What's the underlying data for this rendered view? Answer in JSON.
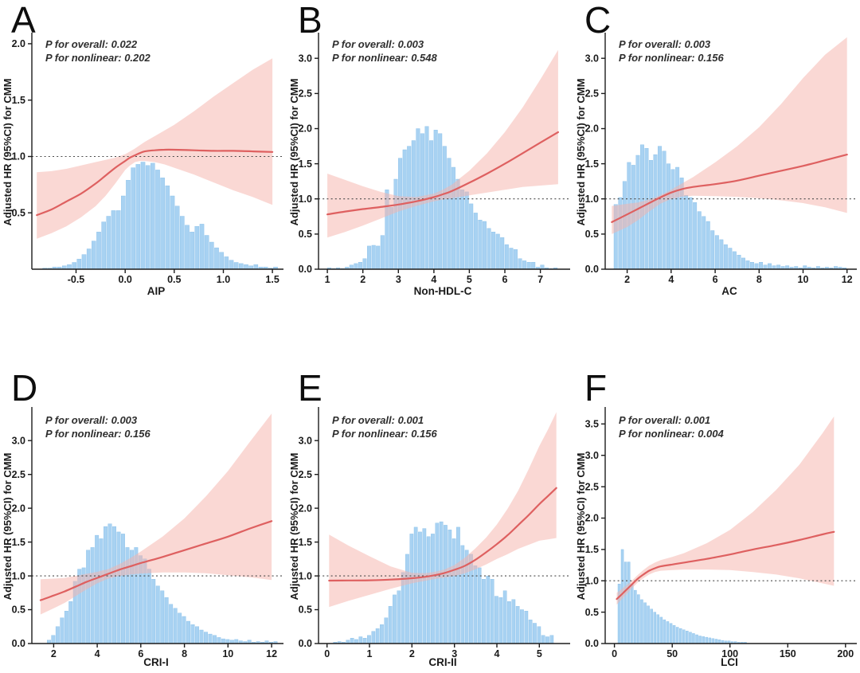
{
  "figure": {
    "ylabel": "Adjusted HR (95%CI) for CMM",
    "colors": {
      "curve": "#de6060",
      "band": "#f6b2aa",
      "band_opacity": 0.5,
      "hist_fill": "#a8d2f2",
      "hist_edge": "#86bde8",
      "reference_dash": "#4a4a4a",
      "axis": "#1c1c1c",
      "tick_text": "#1a1a1a"
    }
  },
  "chart_data": [
    {
      "letter": "A",
      "type": "line",
      "xlabel": "AIP",
      "annotations": {
        "p_overall": "P for overall: 0.022",
        "p_nonlinear": "P for nonlinear: 0.202"
      },
      "xlim": [
        -0.95,
        1.58
      ],
      "ylim": [
        0,
        2.07
      ],
      "ref_line": 1.0,
      "xticks": {
        "values": [
          -0.5,
          0,
          0.5,
          1,
          1.5
        ],
        "labels": [
          "-0.5",
          "0.0",
          "0.5",
          "1.0",
          "1.5"
        ]
      },
      "yticks": {
        "values": [
          0.5,
          1,
          1.5,
          2
        ],
        "labels": [
          "0.5",
          "1.0",
          "1.5",
          "2.0"
        ]
      },
      "curve": {
        "x": [
          -0.9,
          -0.75,
          -0.6,
          -0.45,
          -0.3,
          -0.2,
          -0.1,
          0,
          0.05,
          0.1,
          0.15,
          0.2,
          0.3,
          0.4,
          0.5,
          0.7,
          0.9,
          1.1,
          1.3,
          1.5
        ],
        "hr": [
          0.48,
          0.53,
          0.6,
          0.67,
          0.76,
          0.83,
          0.9,
          0.96,
          0.99,
          1.01,
          1.03,
          1.045,
          1.055,
          1.06,
          1.06,
          1.055,
          1.05,
          1.05,
          1.045,
          1.04
        ],
        "lower": [
          0.27,
          0.32,
          0.38,
          0.46,
          0.56,
          0.65,
          0.76,
          0.88,
          0.92,
          0.95,
          0.96,
          0.96,
          0.95,
          0.93,
          0.9,
          0.84,
          0.77,
          0.7,
          0.64,
          0.57
        ],
        "upper": [
          0.86,
          0.87,
          0.89,
          0.92,
          0.95,
          0.97,
          0.99,
          1.02,
          1.045,
          1.07,
          1.1,
          1.13,
          1.18,
          1.23,
          1.28,
          1.4,
          1.53,
          1.65,
          1.77,
          1.87
        ]
      },
      "hist": {
        "x0": -0.84,
        "bin_width": 0.05,
        "heights": [
          0.01,
          0.01,
          0.02,
          0.02,
          0.03,
          0.04,
          0.06,
          0.09,
          0.13,
          0.18,
          0.25,
          0.33,
          0.42,
          0.47,
          0.52,
          0.52,
          0.65,
          0.79,
          0.9,
          0.93,
          0.95,
          0.92,
          0.94,
          0.88,
          0.81,
          0.74,
          0.65,
          0.56,
          0.47,
          0.39,
          0.33,
          0.38,
          0.4,
          0.3,
          0.24,
          0.19,
          0.15,
          0.11,
          0.08,
          0.06,
          0.05,
          0.04,
          0.03,
          0.04,
          0.02,
          0.02,
          0.01,
          0.02
        ]
      }
    },
    {
      "letter": "B",
      "type": "line",
      "xlabel": "Non-HDL-C",
      "annotations": {
        "p_overall": "P for overall: 0.003",
        "p_nonlinear": "P for nonlinear: 0.548"
      },
      "xlim": [
        0.75,
        7.75
      ],
      "ylim": [
        0,
        3.32
      ],
      "ref_line": 1.0,
      "xticks": {
        "values": [
          1,
          2,
          3,
          4,
          5,
          6,
          7
        ],
        "labels": [
          "1",
          "2",
          "3",
          "4",
          "5",
          "6",
          "7"
        ]
      },
      "yticks": {
        "values": [
          0,
          0.5,
          1,
          1.5,
          2,
          2.5,
          3
        ],
        "labels": [
          "0.0",
          "0.5",
          "1.0",
          "1.5",
          "2.0",
          "2.5",
          "3.0"
        ]
      },
      "curve": {
        "x": [
          1,
          1.5,
          2,
          2.5,
          3,
          3.5,
          4,
          4.25,
          4.5,
          5,
          5.5,
          6,
          6.5,
          7,
          7.5
        ],
        "hr": [
          0.78,
          0.82,
          0.855,
          0.885,
          0.92,
          0.965,
          1.025,
          1.065,
          1.11,
          1.23,
          1.36,
          1.5,
          1.65,
          1.8,
          1.95
        ],
        "lower": [
          0.45,
          0.53,
          0.62,
          0.72,
          0.82,
          0.9,
          0.965,
          0.99,
          1.01,
          1.05,
          1.09,
          1.13,
          1.17,
          1.19,
          1.21
        ],
        "upper": [
          1.36,
          1.27,
          1.18,
          1.1,
          1.04,
          1.025,
          1.075,
          1.13,
          1.2,
          1.4,
          1.65,
          1.95,
          2.3,
          2.7,
          3.12
        ]
      },
      "hist": {
        "x0": 1.0,
        "bin_width": 0.125,
        "heights": [
          0.02,
          0.01,
          0.02,
          0.01,
          0.03,
          0.06,
          0.08,
          0.1,
          0.15,
          0.33,
          0.34,
          0.33,
          0.48,
          1.13,
          0.88,
          1.28,
          1.58,
          1.7,
          1.75,
          1.83,
          2.0,
          1.93,
          2.03,
          1.83,
          1.98,
          1.93,
          1.75,
          1.58,
          1.45,
          1.28,
          1.13,
          1.1,
          0.93,
          0.8,
          0.7,
          0.68,
          0.58,
          0.53,
          0.5,
          0.45,
          0.35,
          0.3,
          0.28,
          0.15,
          0.12,
          0.1,
          0.1,
          0.03,
          0.06,
          0.02,
          0.01,
          0.02
        ]
      }
    },
    {
      "letter": "C",
      "type": "line",
      "xlabel": "AC",
      "annotations": {
        "p_overall": "P for overall: 0.003",
        "p_nonlinear": "P for nonlinear: 0.156"
      },
      "xlim": [
        1.0,
        12.3
      ],
      "ylim": [
        0,
        3.32
      ],
      "ref_line": 1.0,
      "xticks": {
        "values": [
          2,
          4,
          6,
          8,
          10,
          12
        ],
        "labels": [
          "2",
          "4",
          "6",
          "8",
          "10",
          "12"
        ]
      },
      "yticks": {
        "values": [
          0,
          0.5,
          1,
          1.5,
          2,
          2.5,
          3
        ],
        "labels": [
          "0.0",
          "0.5",
          "1.0",
          "1.5",
          "2.0",
          "2.5",
          "3.0"
        ]
      },
      "curve": {
        "x": [
          1.3,
          2,
          2.5,
          3,
          3.5,
          4,
          4.5,
          5,
          6,
          7,
          8,
          9,
          10,
          11,
          12
        ],
        "hr": [
          0.67,
          0.78,
          0.86,
          0.94,
          1.02,
          1.09,
          1.14,
          1.17,
          1.21,
          1.26,
          1.33,
          1.4,
          1.47,
          1.55,
          1.63
        ],
        "lower": [
          0.5,
          0.6,
          0.7,
          0.82,
          0.93,
          1.0,
          1.035,
          1.045,
          1.04,
          1.03,
          1.01,
          0.98,
          0.94,
          0.88,
          0.8
        ],
        "upper": [
          0.9,
          0.93,
          0.95,
          0.99,
          1.05,
          1.13,
          1.22,
          1.31,
          1.52,
          1.75,
          2.02,
          2.35,
          2.72,
          3.05,
          3.3
        ]
      },
      "hist": {
        "x0": 1.4,
        "bin_width": 0.2,
        "heights": [
          0.92,
          1.02,
          1.25,
          1.52,
          1.48,
          1.62,
          1.77,
          1.72,
          1.55,
          1.63,
          1.75,
          1.68,
          1.5,
          1.42,
          1.45,
          1.3,
          1.05,
          1.02,
          0.95,
          0.82,
          0.75,
          0.68,
          0.55,
          0.48,
          0.42,
          0.35,
          0.3,
          0.25,
          0.2,
          0.16,
          0.12,
          0.1,
          0.08,
          0.1,
          0.06,
          0.08,
          0.05,
          0.06,
          0.04,
          0.05,
          0.03,
          0.04,
          0.02,
          0.05,
          0.03,
          0.02,
          0.04,
          0.02,
          0.03,
          0.02,
          0.04,
          0.03,
          0.02
        ]
      }
    },
    {
      "letter": "D",
      "type": "line",
      "xlabel": "CRI-I",
      "annotations": {
        "p_overall": "P for overall: 0.003",
        "p_nonlinear": "P for nonlinear: 0.156"
      },
      "xlim": [
        1.0,
        12.4
      ],
      "ylim": [
        0,
        3.45
      ],
      "ref_line": 1.0,
      "xticks": {
        "values": [
          2,
          4,
          6,
          8,
          10,
          12
        ],
        "labels": [
          "2",
          "4",
          "6",
          "8",
          "10",
          "12"
        ]
      },
      "yticks": {
        "values": [
          0,
          0.5,
          1,
          1.5,
          2,
          2.5,
          3
        ],
        "labels": [
          "0.0",
          "0.5",
          "1.0",
          "1.5",
          "2.0",
          "2.5",
          "3.0"
        ]
      },
      "curve": {
        "x": [
          1.4,
          2,
          2.5,
          3,
          3.5,
          4,
          4.5,
          5,
          5.5,
          6,
          7,
          8,
          9,
          10,
          11,
          12
        ],
        "hr": [
          0.64,
          0.71,
          0.77,
          0.84,
          0.91,
          0.97,
          1.03,
          1.09,
          1.14,
          1.19,
          1.28,
          1.38,
          1.48,
          1.58,
          1.7,
          1.81
        ],
        "lower": [
          0.43,
          0.52,
          0.6,
          0.7,
          0.8,
          0.89,
          0.96,
          1.0,
          1.02,
          1.035,
          1.05,
          1.05,
          1.04,
          1.01,
          0.98,
          0.94
        ],
        "upper": [
          0.95,
          0.96,
          0.97,
          1.0,
          1.03,
          1.06,
          1.1,
          1.17,
          1.26,
          1.36,
          1.58,
          1.85,
          2.18,
          2.55,
          2.98,
          3.4
        ]
      },
      "hist": {
        "x0": 1.7,
        "bin_width": 0.2,
        "heights": [
          0.05,
          0.12,
          0.25,
          0.38,
          0.48,
          0.62,
          0.92,
          1.1,
          1.12,
          1.38,
          1.42,
          1.6,
          1.55,
          1.73,
          1.77,
          1.73,
          1.65,
          1.62,
          1.42,
          1.38,
          1.42,
          1.3,
          1.25,
          1.1,
          0.95,
          0.85,
          0.78,
          0.68,
          0.58,
          0.52,
          0.45,
          0.4,
          0.33,
          0.28,
          0.25,
          0.2,
          0.17,
          0.14,
          0.12,
          0.09,
          0.07,
          0.06,
          0.05,
          0.06,
          0.04,
          0.03,
          0.05,
          0.02,
          0.03,
          0.02,
          0.04,
          0.02,
          0.03
        ]
      }
    },
    {
      "letter": "E",
      "type": "line",
      "xlabel": "CRI-II",
      "annotations": {
        "p_overall": "P for overall: 0.001",
        "p_nonlinear": "P for nonlinear: 0.156"
      },
      "xlim": [
        -0.2,
        5.65
      ],
      "ylim": [
        0,
        3.45
      ],
      "ref_line": 1.0,
      "xticks": {
        "values": [
          0,
          1,
          2,
          3,
          4,
          5
        ],
        "labels": [
          "0",
          "1",
          "2",
          "3",
          "4",
          "5"
        ]
      },
      "yticks": {
        "values": [
          0,
          0.5,
          1,
          1.5,
          2,
          2.5,
          3
        ],
        "labels": [
          "0.0",
          "0.5",
          "1.0",
          "1.5",
          "2.0",
          "2.5",
          "3.0"
        ]
      },
      "curve": {
        "x": [
          0.05,
          0.5,
          1,
          1.5,
          2,
          2.3,
          2.5,
          2.75,
          3,
          3.25,
          3.5,
          3.75,
          4,
          4.25,
          4.5,
          4.75,
          5,
          5.2,
          5.4
        ],
        "hr": [
          0.93,
          0.932,
          0.935,
          0.945,
          0.965,
          0.985,
          1.005,
          1.04,
          1.09,
          1.15,
          1.24,
          1.35,
          1.47,
          1.6,
          1.75,
          1.9,
          2.06,
          2.18,
          2.3
        ],
        "lower": [
          0.54,
          0.63,
          0.72,
          0.81,
          0.89,
          0.925,
          0.95,
          0.975,
          1.0,
          1.04,
          1.1,
          1.17,
          1.25,
          1.32,
          1.4,
          1.46,
          1.52,
          1.54,
          1.56
        ],
        "upper": [
          1.61,
          1.45,
          1.29,
          1.14,
          1.045,
          1.04,
          1.055,
          1.09,
          1.16,
          1.27,
          1.41,
          1.57,
          1.76,
          1.99,
          2.26,
          2.58,
          2.92,
          3.16,
          3.42
        ]
      },
      "hist": {
        "x0": 0.15,
        "bin_width": 0.1,
        "heights": [
          0.02,
          0.03,
          0.02,
          0.05,
          0.08,
          0.06,
          0.1,
          0.08,
          0.12,
          0.18,
          0.22,
          0.28,
          0.38,
          0.55,
          0.72,
          0.78,
          1.05,
          1.32,
          1.62,
          1.72,
          1.65,
          1.7,
          1.58,
          1.62,
          1.78,
          1.8,
          1.75,
          1.68,
          1.55,
          1.72,
          1.45,
          1.38,
          1.32,
          1.15,
          1.12,
          0.95,
          1.0,
          0.95,
          0.7,
          0.68,
          0.78,
          0.62,
          0.65,
          0.55,
          0.5,
          0.48,
          0.35,
          0.3,
          0.25,
          0.12,
          0.1,
          0.12
        ]
      }
    },
    {
      "letter": "F",
      "type": "line",
      "xlabel": "LCI",
      "annotations": {
        "p_overall": "P for overall: 0.001",
        "p_nonlinear": "P for nonlinear: 0.004"
      },
      "xlim": [
        -8,
        207
      ],
      "ylim": [
        0,
        3.72
      ],
      "ref_line": 1.0,
      "xticks": {
        "values": [
          0,
          50,
          100,
          150,
          200
        ],
        "labels": [
          "0",
          "50",
          "100",
          "150",
          "200"
        ]
      },
      "yticks": {
        "values": [
          0,
          0.5,
          1,
          1.5,
          2,
          2.5,
          3,
          3.5
        ],
        "labels": [
          "0.0",
          "0.5",
          "1.0",
          "1.5",
          "2.0",
          "2.5",
          "3.0",
          "3.5"
        ]
      },
      "curve": {
        "x": [
          2,
          5,
          10,
          15,
          20,
          25,
          30,
          35,
          40,
          50,
          60,
          80,
          100,
          120,
          140,
          160,
          180,
          190
        ],
        "hr": [
          0.71,
          0.76,
          0.85,
          0.94,
          1.03,
          1.1,
          1.16,
          1.2,
          1.23,
          1.26,
          1.29,
          1.35,
          1.42,
          1.5,
          1.57,
          1.65,
          1.74,
          1.78
        ],
        "lower": [
          0.62,
          0.68,
          0.78,
          0.88,
          0.97,
          1.04,
          1.1,
          1.14,
          1.16,
          1.17,
          1.18,
          1.18,
          1.17,
          1.14,
          1.1,
          1.04,
          0.96,
          0.92
        ],
        "upper": [
          0.81,
          0.85,
          0.92,
          1.0,
          1.09,
          1.17,
          1.24,
          1.29,
          1.33,
          1.38,
          1.44,
          1.6,
          1.81,
          2.1,
          2.45,
          2.85,
          3.35,
          3.62
        ]
      },
      "hist": {
        "x0": 3,
        "bin_width": 2.8,
        "heights": [
          0.95,
          1.5,
          1.3,
          1.3,
          0.95,
          0.85,
          0.78,
          0.7,
          0.65,
          0.6,
          0.55,
          0.5,
          0.46,
          0.42,
          0.38,
          0.35,
          0.32,
          0.29,
          0.26,
          0.24,
          0.22,
          0.2,
          0.18,
          0.16,
          0.14,
          0.12,
          0.11,
          0.1,
          0.09,
          0.08,
          0.07,
          0.06,
          0.05,
          0.04,
          0.04,
          0.03,
          0.03,
          0.02,
          0.02,
          0.02
        ]
      }
    }
  ]
}
